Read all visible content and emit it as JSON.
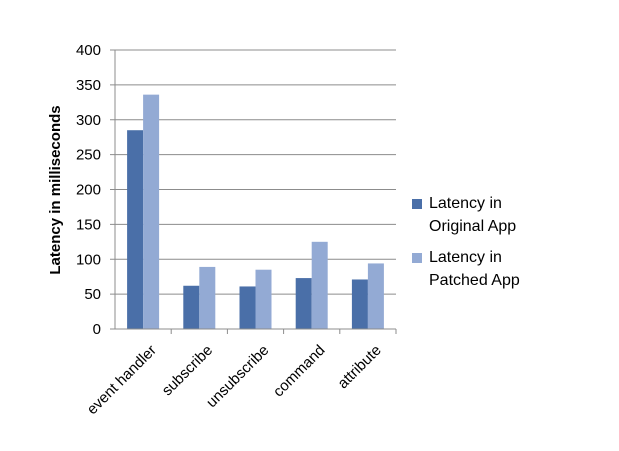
{
  "chart_data": {
    "type": "bar",
    "title": "",
    "xlabel": "",
    "ylabel": "Latency  in milliseconds",
    "categories": [
      "event handler",
      "subscribe",
      "unsubscribe",
      "command",
      "attribute"
    ],
    "series": [
      {
        "name": "Latency in Original App",
        "name_lines": [
          "Latency in",
          "Original App"
        ],
        "color": "#4A6FA8",
        "values": [
          285,
          62,
          61,
          73,
          71
        ]
      },
      {
        "name": "Latency in Patched App",
        "name_lines": [
          "Latency in",
          "Patched App"
        ],
        "color": "#93AAD4",
        "values": [
          336,
          89,
          85,
          125,
          94
        ]
      }
    ],
    "ylim": [
      0,
      400
    ],
    "yticks": [
      0,
      50,
      100,
      150,
      200,
      250,
      300,
      350,
      400
    ],
    "grid": true,
    "legend_position": "right"
  }
}
